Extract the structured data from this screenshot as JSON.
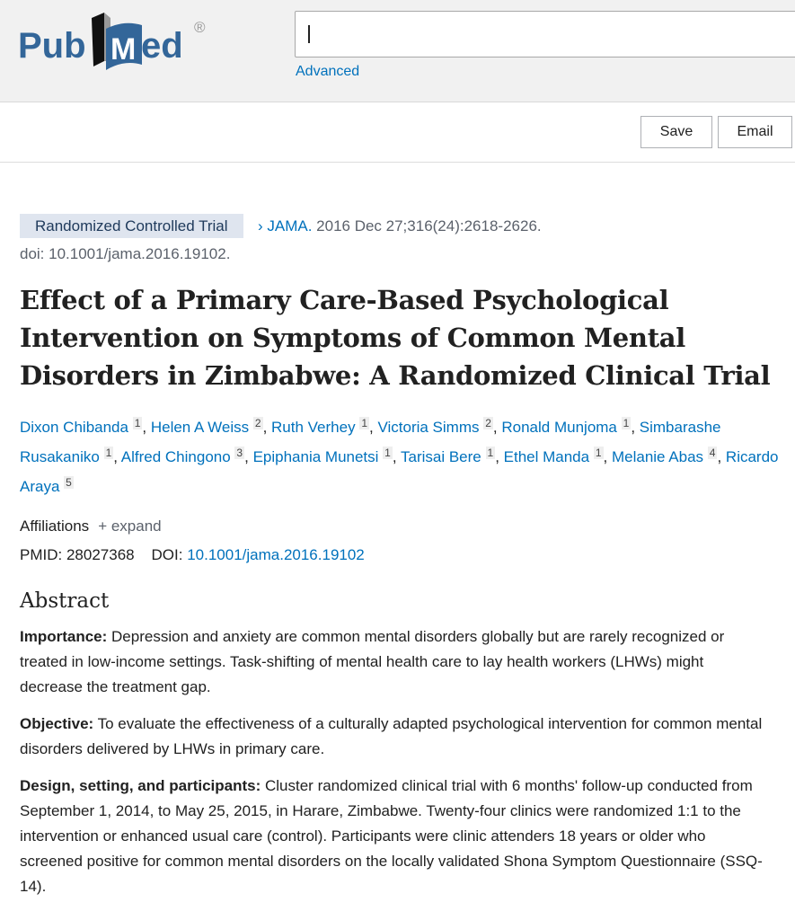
{
  "header": {
    "logo_text": "PubMed",
    "search_value": "",
    "advanced_label": "Advanced"
  },
  "toolbar": {
    "save_label": "Save",
    "email_label": "Email"
  },
  "article": {
    "type_badge": "Randomized Controlled Trial",
    "journal": "JAMA.",
    "citation": "2016 Dec 27;316(24):2618-2626.",
    "doi_line": "doi: 10.1001/jama.2016.19102.",
    "title": "Effect of a Primary Care-Based Psychological Intervention on Symptoms of Common Mental Disorders in Zimbabwe: A Randomized Clinical Trial",
    "authors": [
      {
        "name": "Dixon Chibanda",
        "aff": "1"
      },
      {
        "name": "Helen A Weiss",
        "aff": "2"
      },
      {
        "name": "Ruth Verhey",
        "aff": "1"
      },
      {
        "name": "Victoria Simms",
        "aff": "2"
      },
      {
        "name": "Ronald Munjoma",
        "aff": "1"
      },
      {
        "name": "Simbarashe Rusakaniko",
        "aff": "1"
      },
      {
        "name": "Alfred Chingono",
        "aff": "3"
      },
      {
        "name": "Epiphania Munetsi",
        "aff": "1"
      },
      {
        "name": "Tarisai Bere",
        "aff": "1"
      },
      {
        "name": "Ethel Manda",
        "aff": "1"
      },
      {
        "name": "Melanie Abas",
        "aff": "4"
      },
      {
        "name": "Ricardo Araya",
        "aff": "5"
      }
    ],
    "affiliations_label": "Affiliations",
    "expand_label": "+ expand",
    "pmid_label": "PMID:",
    "pmid": "28027368",
    "doi_label": "DOI:",
    "doi": "10.1001/jama.2016.19102"
  },
  "abstract": {
    "heading": "Abstract",
    "sections": [
      {
        "label": "Importance:",
        "text": "Depression and anxiety are common mental disorders globally but are rarely recognized or treated in low-income settings. Task-shifting of mental health care to lay health workers (LHWs) might decrease the treatment gap."
      },
      {
        "label": "Objective:",
        "text": "To evaluate the effectiveness of a culturally adapted psychological intervention for common mental disorders delivered by LHWs in primary care."
      },
      {
        "label": "Design, setting, and participants:",
        "text": "Cluster randomized clinical trial with 6 months' follow-up conducted from September 1, 2014, to May 25, 2015, in Harare, Zimbabwe. Twenty-four clinics were randomized 1:1 to the intervention or enhanced usual care (control). Participants were clinic attenders 18 years or older who screened positive for common mental disorders on the locally validated Shona Symptom Questionnaire (SSQ-14)."
      }
    ]
  }
}
